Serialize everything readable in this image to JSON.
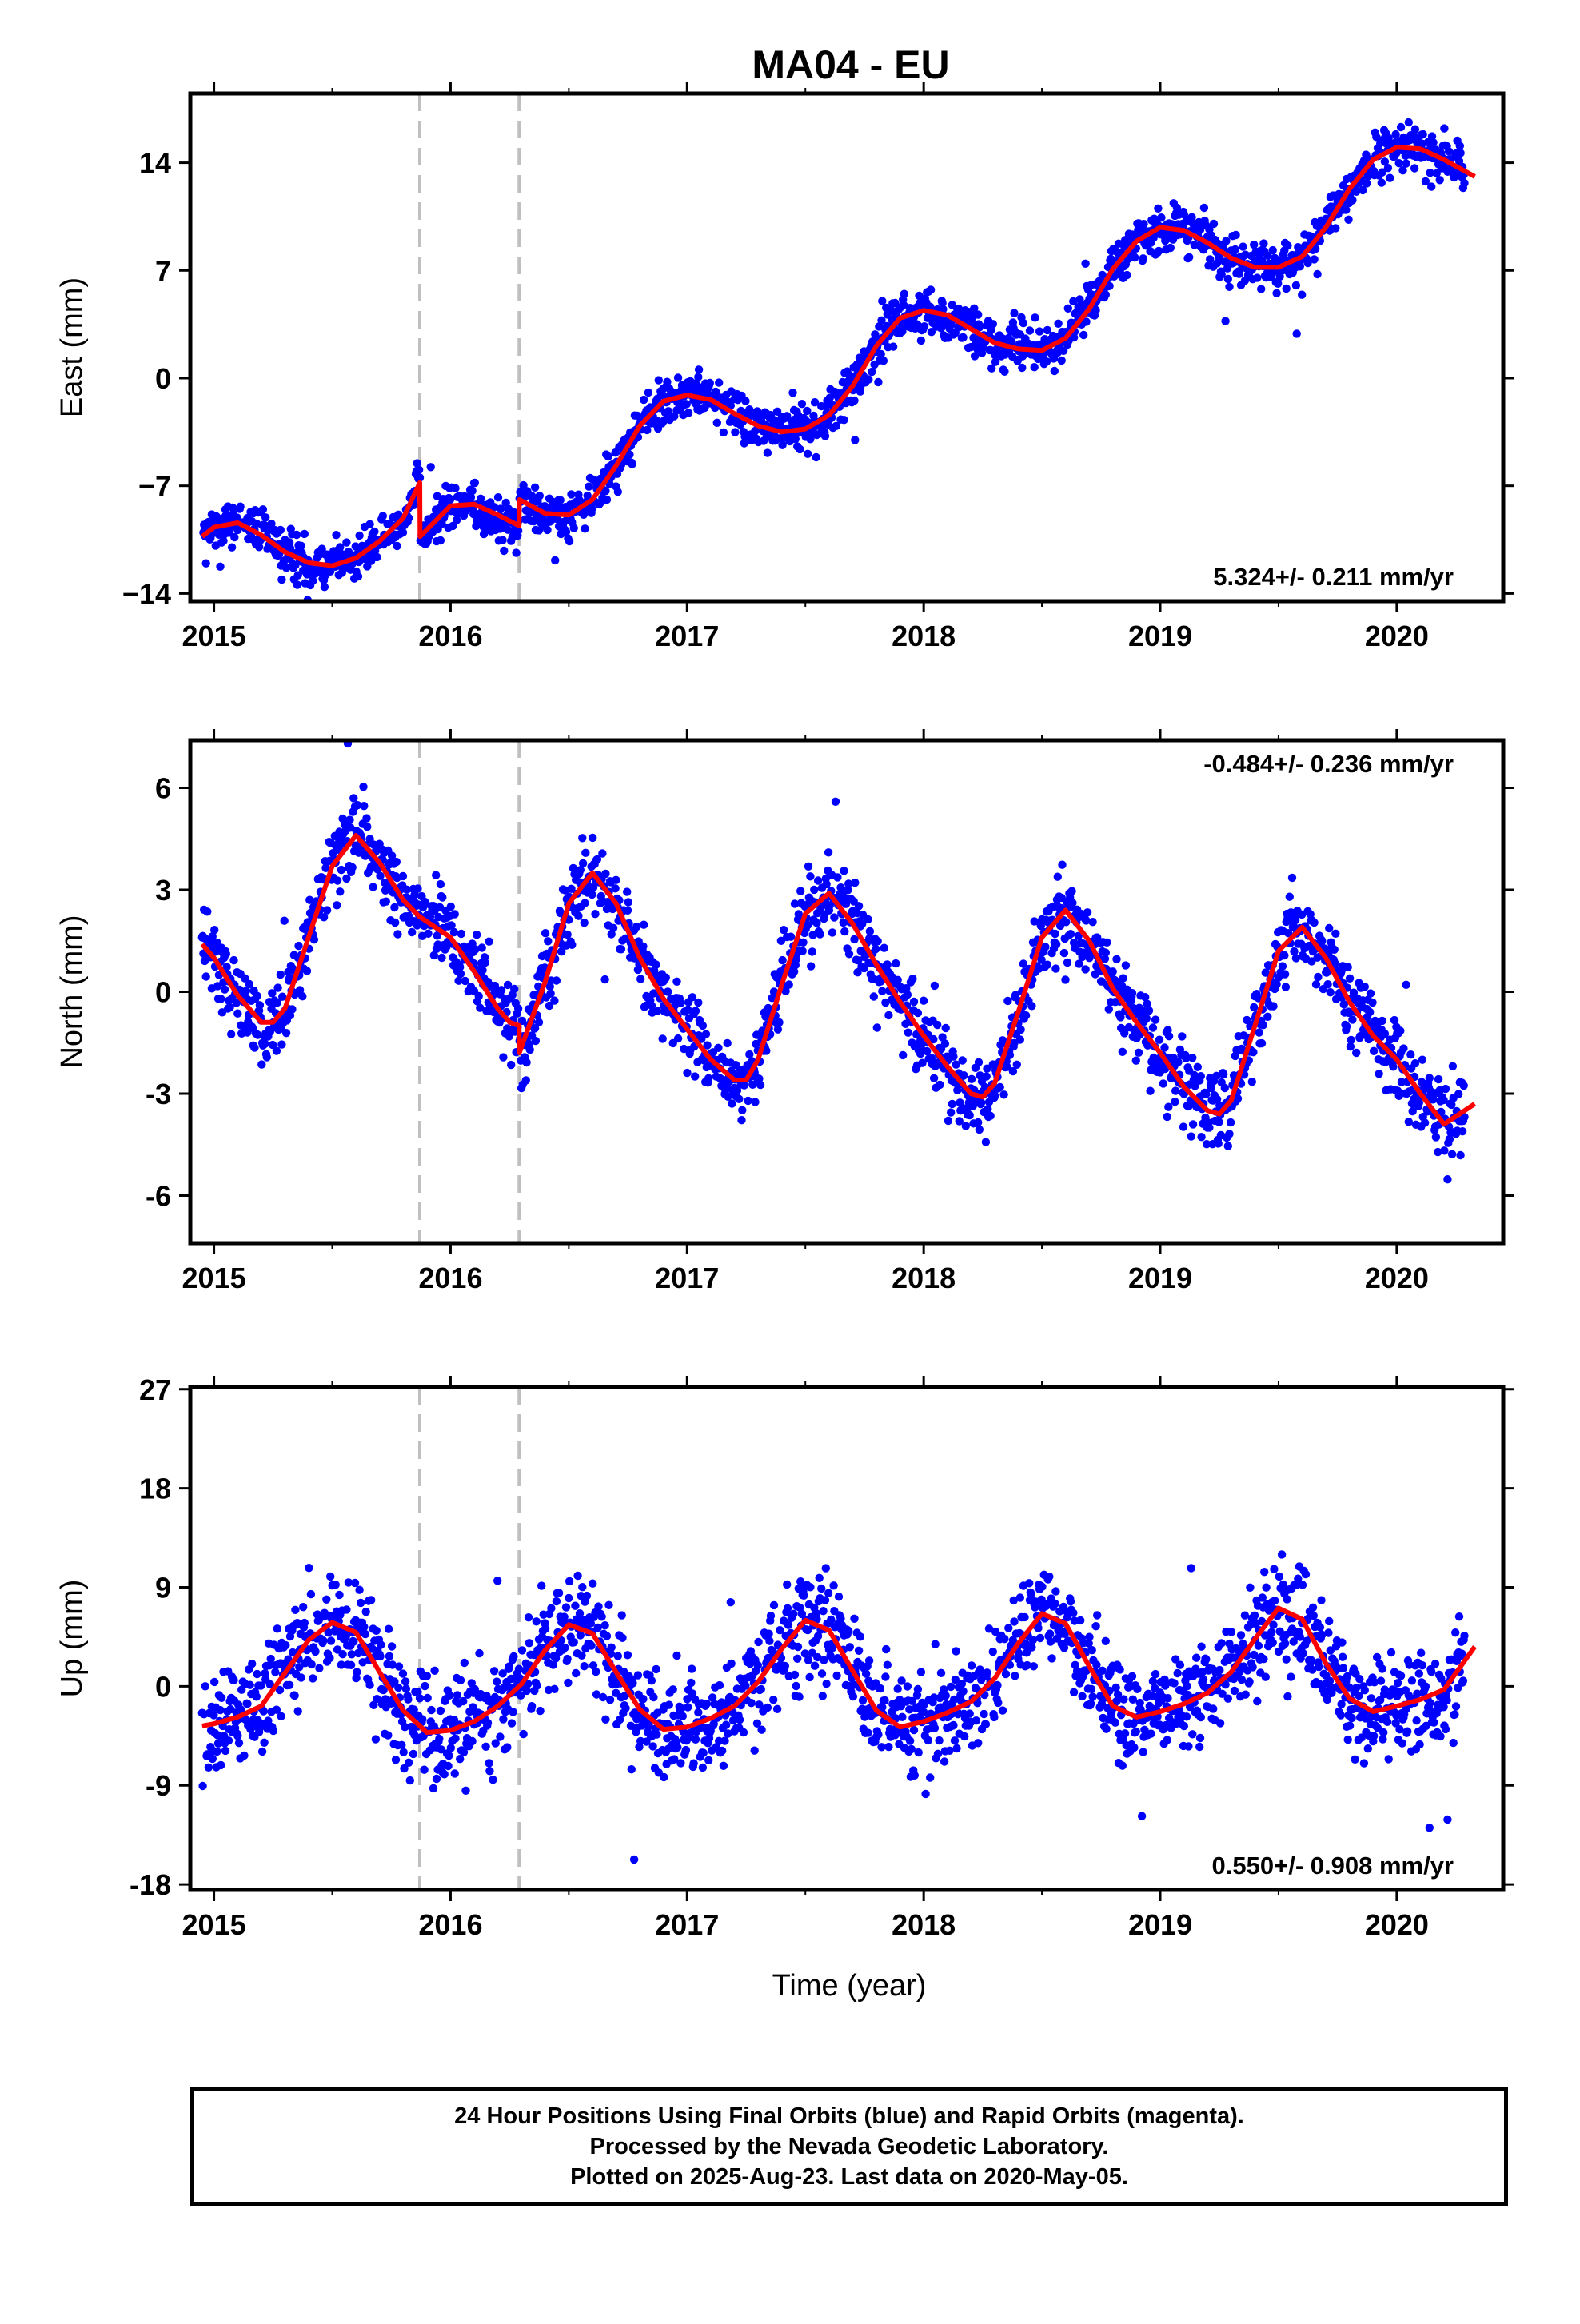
{
  "title": "MA04 - EU",
  "xlabel": "Time (year)",
  "footer": {
    "line1": "24 Hour Positions Using Final Orbits (blue) and Rapid Orbits (magenta).",
    "line2": "Processed by the Nevada Geodetic Laboratory.",
    "line3": "Plotted on 2025-Aug-23. Last data on 2020-May-05."
  },
  "colors": {
    "points": "#0000ff",
    "model": "#ff0000",
    "event_lines": "#c0c0c0",
    "frame": "#000000"
  },
  "chart_data": [
    {
      "type": "scatter",
      "component": "east",
      "ylabel": "East (mm)",
      "rate_label": "5.324+/- 0.211 mm/yr",
      "rate_position": "bottom-right",
      "xlim": [
        2014.9,
        2020.45
      ],
      "ylim": [
        -14.5,
        18.5
      ],
      "x_ticks": [
        "2015",
        "2016",
        "2017",
        "2018",
        "2019",
        "2020"
      ],
      "y_ticks": [
        "14",
        "7",
        "0",
        "−7",
        "−14"
      ],
      "y_tick_values": [
        14,
        7,
        0,
        -7,
        -14
      ],
      "event_lines": [
        2015.87,
        2016.29
      ],
      "model": {
        "x": [
          2014.95,
          2015.0,
          2015.1,
          2015.2,
          2015.3,
          2015.4,
          2015.5,
          2015.6,
          2015.7,
          2015.8,
          2015.87,
          2015.871,
          2016.0,
          2016.1,
          2016.2,
          2016.29,
          2016.291,
          2016.4,
          2016.5,
          2016.6,
          2016.7,
          2016.8,
          2016.9,
          2017.0,
          2017.1,
          2017.2,
          2017.3,
          2017.4,
          2017.5,
          2017.6,
          2017.7,
          2017.8,
          2017.9,
          2018.0,
          2018.1,
          2018.2,
          2018.3,
          2018.4,
          2018.5,
          2018.6,
          2018.7,
          2018.8,
          2018.9,
          2019.0,
          2019.1,
          2019.2,
          2019.3,
          2019.4,
          2019.5,
          2019.6,
          2019.7,
          2019.8,
          2019.9,
          2020.0,
          2020.1,
          2020.2,
          2020.33
        ],
        "y": [
          -10.3,
          -9.7,
          -9.4,
          -10.2,
          -11.3,
          -12.0,
          -12.2,
          -11.7,
          -10.6,
          -9.1,
          -6.8,
          -10.3,
          -8.3,
          -8.2,
          -8.9,
          -9.6,
          -7.9,
          -8.8,
          -8.9,
          -7.9,
          -5.7,
          -3.1,
          -1.5,
          -1.1,
          -1.4,
          -2.3,
          -3.1,
          -3.5,
          -3.3,
          -2.4,
          -0.5,
          2.1,
          3.9,
          4.4,
          4.1,
          3.2,
          2.3,
          1.9,
          1.8,
          2.6,
          4.5,
          7.1,
          8.9,
          9.8,
          9.6,
          8.8,
          7.8,
          7.2,
          7.2,
          7.9,
          9.8,
          12.3,
          14.2,
          15.0,
          14.9,
          14.2,
          13.1
        ]
      },
      "points_note": "approximately 1900 daily positions; ~1.1 mm scatter about the model"
    },
    {
      "type": "scatter",
      "component": "north",
      "ylabel": "North (mm)",
      "rate_label": "-0.484+/- 0.236 mm/yr",
      "rate_position": "top-right",
      "xlim": [
        2014.9,
        2020.45
      ],
      "ylim": [
        -7.4,
        7.4
      ],
      "x_ticks": [
        "2015",
        "2016",
        "2017",
        "2018",
        "2019",
        "2020"
      ],
      "y_ticks": [
        "6",
        "3",
        "0",
        "-3",
        "-6"
      ],
      "y_tick_values": [
        6,
        3,
        0,
        -3,
        -6
      ],
      "event_lines": [
        2015.87,
        2016.29
      ],
      "model": {
        "x": [
          2014.95,
          2015.0,
          2015.1,
          2015.2,
          2015.25,
          2015.3,
          2015.4,
          2015.5,
          2015.6,
          2015.7,
          2015.8,
          2015.87,
          2015.871,
          2016.0,
          2016.1,
          2016.2,
          2016.25,
          2016.29,
          2016.291,
          2016.4,
          2016.5,
          2016.6,
          2016.7,
          2016.8,
          2016.9,
          2017.0,
          2017.1,
          2017.2,
          2017.25,
          2017.3,
          2017.4,
          2017.5,
          2017.6,
          2017.7,
          2017.8,
          2017.9,
          2018.0,
          2018.1,
          2018.2,
          2018.25,
          2018.3,
          2018.4,
          2018.5,
          2018.6,
          2018.7,
          2018.8,
          2018.9,
          2019.0,
          2019.1,
          2019.2,
          2019.25,
          2019.3,
          2019.4,
          2019.5,
          2019.6,
          2019.7,
          2019.8,
          2019.9,
          2020.0,
          2020.1,
          2020.2,
          2020.33
        ],
        "y": [
          1.4,
          1.0,
          -0.1,
          -0.9,
          -0.9,
          -0.5,
          1.6,
          3.7,
          4.6,
          3.8,
          2.7,
          2.2,
          2.2,
          1.6,
          0.6,
          -0.5,
          -0.9,
          -1.0,
          -1.8,
          0.3,
          2.6,
          3.5,
          2.6,
          1.0,
          -0.2,
          -1.1,
          -2.0,
          -2.6,
          -2.6,
          -2.0,
          0.2,
          2.3,
          2.9,
          2.0,
          0.8,
          -0.3,
          -1.3,
          -2.2,
          -3.0,
          -3.1,
          -2.7,
          -0.6,
          1.6,
          2.4,
          1.5,
          0.1,
          -0.9,
          -1.8,
          -2.8,
          -3.5,
          -3.6,
          -3.2,
          -1.0,
          1.2,
          1.9,
          1.0,
          -0.3,
          -1.3,
          -2.0,
          -3.0,
          -3.9,
          -3.3
        ]
      },
      "points_note": "approximately 1900 daily positions; ~0.8 mm scatter about the model"
    },
    {
      "type": "scatter",
      "component": "up",
      "ylabel": "Up (mm)",
      "rate_label": "0.550+/- 0.908 mm/yr",
      "rate_position": "bottom-right",
      "xlim": [
        2014.9,
        2020.45
      ],
      "ylim": [
        -18.5,
        27.2
      ],
      "x_ticks": [
        "2015",
        "2016",
        "2017",
        "2018",
        "2019",
        "2020"
      ],
      "y_ticks": [
        "27",
        "18",
        "9",
        "0",
        "-9",
        "-18"
      ],
      "y_tick_values": [
        27,
        18,
        9,
        0,
        -9,
        -18
      ],
      "event_lines": [
        2015.87,
        2016.29
      ],
      "model": {
        "x": [
          2014.95,
          2015.0,
          2015.1,
          2015.2,
          2015.3,
          2015.4,
          2015.5,
          2015.6,
          2015.7,
          2015.8,
          2015.9,
          2016.0,
          2016.1,
          2016.2,
          2016.3,
          2016.4,
          2016.5,
          2016.6,
          2016.7,
          2016.8,
          2016.9,
          2017.0,
          2017.1,
          2017.2,
          2017.3,
          2017.4,
          2017.5,
          2017.6,
          2017.7,
          2017.8,
          2017.9,
          2018.0,
          2018.1,
          2018.2,
          2018.3,
          2018.4,
          2018.5,
          2018.6,
          2018.7,
          2018.8,
          2018.9,
          2019.0,
          2019.1,
          2019.2,
          2019.3,
          2019.4,
          2019.5,
          2019.6,
          2019.7,
          2019.8,
          2019.9,
          2020.0,
          2020.1,
          2020.2,
          2020.33
        ],
        "y": [
          -3.6,
          -3.4,
          -2.8,
          -1.8,
          1.2,
          4.2,
          5.8,
          4.9,
          1.3,
          -2.2,
          -4.2,
          -4.0,
          -3.2,
          -1.8,
          0.2,
          3.3,
          5.6,
          4.8,
          1.3,
          -2.1,
          -3.9,
          -3.7,
          -2.9,
          -1.8,
          0.4,
          3.4,
          6.0,
          5.1,
          1.4,
          -2.2,
          -3.7,
          -3.2,
          -2.4,
          -1.4,
          0.7,
          3.9,
          6.6,
          5.7,
          1.8,
          -1.8,
          -2.8,
          -2.3,
          -1.6,
          -0.6,
          1.3,
          4.3,
          7.1,
          6.1,
          2.1,
          -1.1,
          -2.3,
          -1.8,
          -1.2,
          -0.3,
          3.6
        ]
      },
      "points_note": "approximately 1900 daily positions; ~3.3 mm scatter about the model"
    }
  ]
}
